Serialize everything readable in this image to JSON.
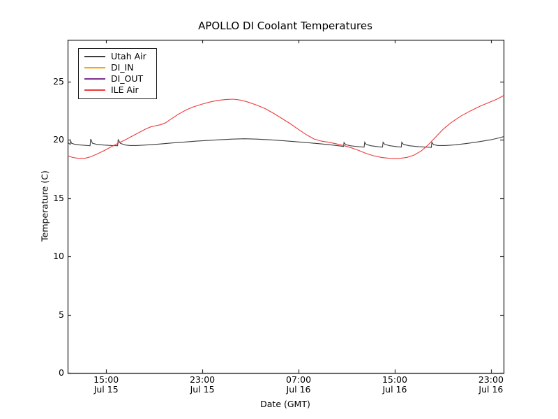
{
  "title": "APOLLO DI Coolant Temperatures",
  "chart_data": {
    "type": "line",
    "title": "APOLLO DI Coolant Temperatures",
    "xlabel": "Date (GMT)",
    "ylabel": "Temperature (C)",
    "x_unit": "hours since Jul 15 00:00 GMT",
    "xlim": [
      11.8,
      48.05
    ],
    "ylim": [
      0,
      28.6
    ],
    "grid": false,
    "legend_position": "upper left",
    "frame_color": "#2a2a2a",
    "x_ticks": [
      {
        "hour": 15,
        "line1": "15:00",
        "line2": "Jul 15"
      },
      {
        "hour": 23,
        "line1": "23:00",
        "line2": "Jul 15"
      },
      {
        "hour": 31,
        "line1": "07:00",
        "line2": "Jul 16"
      },
      {
        "hour": 39,
        "line1": "15:00",
        "line2": "Jul 16"
      },
      {
        "hour": 47,
        "line1": "23:00",
        "line2": "Jul 16"
      }
    ],
    "y_ticks": [
      0,
      5,
      10,
      15,
      20,
      25
    ],
    "series": [
      {
        "name": "Utah Air",
        "color": "#3c3c3c",
        "points": [
          [
            11.81,
            19.93
          ],
          [
            11.86,
            19.74
          ],
          [
            11.95,
            19.66
          ],
          [
            12.02,
            19.62
          ],
          [
            12.05,
            19.93
          ],
          [
            12.12,
            19.72
          ],
          [
            12.35,
            19.64
          ],
          [
            12.75,
            19.58
          ],
          [
            13.2,
            19.54
          ],
          [
            13.66,
            19.5
          ],
          [
            13.72,
            20.08
          ],
          [
            13.86,
            19.72
          ],
          [
            14.2,
            19.62
          ],
          [
            14.8,
            19.56
          ],
          [
            15.5,
            19.52
          ],
          [
            15.95,
            19.5
          ],
          [
            16.0,
            20.02
          ],
          [
            16.2,
            19.7
          ],
          [
            16.6,
            19.56
          ],
          [
            17.0,
            19.52
          ],
          [
            17.5,
            19.52
          ],
          [
            18.5,
            19.58
          ],
          [
            19.5,
            19.65
          ],
          [
            20.5,
            19.74
          ],
          [
            21.5,
            19.82
          ],
          [
            22.5,
            19.9
          ],
          [
            23.5,
            19.96
          ],
          [
            24.5,
            20.02
          ],
          [
            25.5,
            20.07
          ],
          [
            26.5,
            20.1
          ],
          [
            27.5,
            20.07
          ],
          [
            28.5,
            20.02
          ],
          [
            29.5,
            19.95
          ],
          [
            30.5,
            19.87
          ],
          [
            31.5,
            19.79
          ],
          [
            32.5,
            19.7
          ],
          [
            33.5,
            19.6
          ],
          [
            34.3,
            19.5
          ],
          [
            34.74,
            19.44
          ],
          [
            34.78,
            19.78
          ],
          [
            34.92,
            19.6
          ],
          [
            35.3,
            19.5
          ],
          [
            36.0,
            19.42
          ],
          [
            36.45,
            19.38
          ],
          [
            36.5,
            19.8
          ],
          [
            36.62,
            19.62
          ],
          [
            37.0,
            19.5
          ],
          [
            37.6,
            19.42
          ],
          [
            37.98,
            19.38
          ],
          [
            38.03,
            19.8
          ],
          [
            38.16,
            19.62
          ],
          [
            38.6,
            19.5
          ],
          [
            39.2,
            19.42
          ],
          [
            39.54,
            19.38
          ],
          [
            39.58,
            19.8
          ],
          [
            39.72,
            19.62
          ],
          [
            40.2,
            19.5
          ],
          [
            41.0,
            19.42
          ],
          [
            42.04,
            19.36
          ],
          [
            42.08,
            19.8
          ],
          [
            42.22,
            19.6
          ],
          [
            42.6,
            19.52
          ],
          [
            43.2,
            19.52
          ],
          [
            44.0,
            19.58
          ],
          [
            45.0,
            19.7
          ],
          [
            46.0,
            19.85
          ],
          [
            47.0,
            20.02
          ],
          [
            47.7,
            20.18
          ],
          [
            48.04,
            20.28
          ]
        ]
      },
      {
        "name": "DI_IN",
        "color": "#ffa500",
        "points": []
      },
      {
        "name": "DI_OUT",
        "color": "#7e2f8e",
        "points": []
      },
      {
        "name": "ILE Air",
        "color": "#ee3a3a",
        "points": [
          [
            11.81,
            18.65
          ],
          [
            12.2,
            18.5
          ],
          [
            12.7,
            18.42
          ],
          [
            13.2,
            18.42
          ],
          [
            13.7,
            18.55
          ],
          [
            14.3,
            18.82
          ],
          [
            14.9,
            19.12
          ],
          [
            15.4,
            19.4
          ],
          [
            16.0,
            19.72
          ],
          [
            16.6,
            20.02
          ],
          [
            17.2,
            20.35
          ],
          [
            17.8,
            20.68
          ],
          [
            18.3,
            20.95
          ],
          [
            18.7,
            21.12
          ],
          [
            19.1,
            21.22
          ],
          [
            19.5,
            21.3
          ],
          [
            19.9,
            21.45
          ],
          [
            20.4,
            21.8
          ],
          [
            21.0,
            22.2
          ],
          [
            21.6,
            22.55
          ],
          [
            22.2,
            22.82
          ],
          [
            22.9,
            23.05
          ],
          [
            23.6,
            23.25
          ],
          [
            24.3,
            23.4
          ],
          [
            25.0,
            23.48
          ],
          [
            25.6,
            23.5
          ],
          [
            26.2,
            23.42
          ],
          [
            26.8,
            23.25
          ],
          [
            27.5,
            23.0
          ],
          [
            28.2,
            22.7
          ],
          [
            28.9,
            22.3
          ],
          [
            29.6,
            21.85
          ],
          [
            30.3,
            21.4
          ],
          [
            31.0,
            20.9
          ],
          [
            31.7,
            20.42
          ],
          [
            32.3,
            20.08
          ],
          [
            32.9,
            19.9
          ],
          [
            33.5,
            19.8
          ],
          [
            34.2,
            19.65
          ],
          [
            34.8,
            19.5
          ],
          [
            35.4,
            19.32
          ],
          [
            36.0,
            19.1
          ],
          [
            36.6,
            18.85
          ],
          [
            37.2,
            18.65
          ],
          [
            37.9,
            18.5
          ],
          [
            38.6,
            18.42
          ],
          [
            39.3,
            18.4
          ],
          [
            40.0,
            18.5
          ],
          [
            40.6,
            18.7
          ],
          [
            41.2,
            19.05
          ],
          [
            41.8,
            19.6
          ],
          [
            42.4,
            20.25
          ],
          [
            43.0,
            20.9
          ],
          [
            43.7,
            21.5
          ],
          [
            44.5,
            22.05
          ],
          [
            45.3,
            22.5
          ],
          [
            46.1,
            22.9
          ],
          [
            46.9,
            23.25
          ],
          [
            47.5,
            23.5
          ],
          [
            48.04,
            23.8
          ]
        ]
      }
    ]
  }
}
